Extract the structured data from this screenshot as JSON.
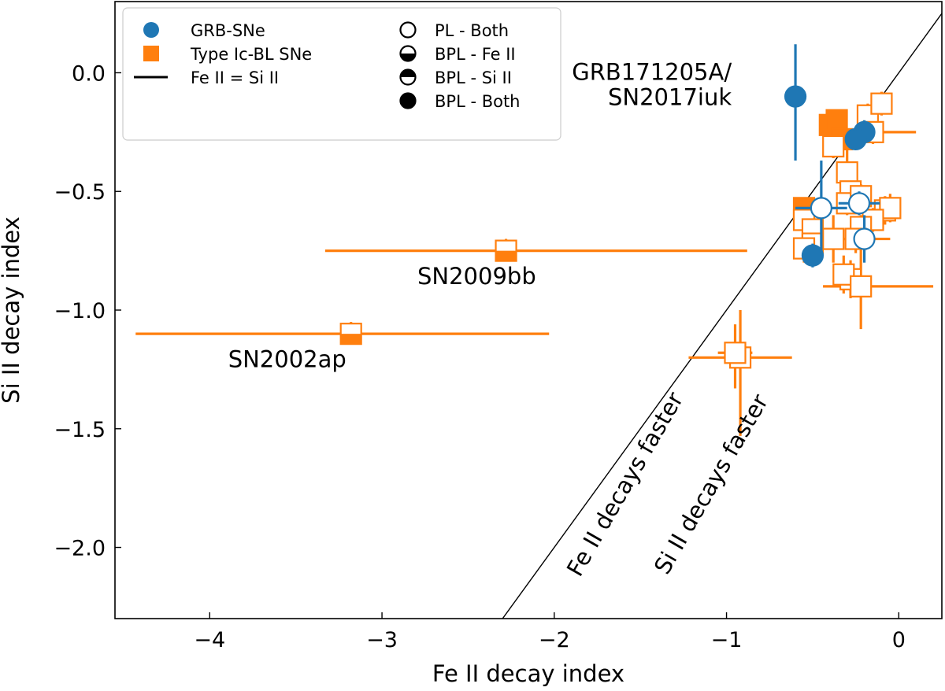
{
  "chart_data": {
    "type": "scatter",
    "xlabel": "Fe II decay index",
    "ylabel": "Si II decay index",
    "xlim": [
      -4.55,
      0.25
    ],
    "ylim": [
      -2.3,
      0.3
    ],
    "xticks": [
      -4,
      -3,
      -2,
      -1,
      0
    ],
    "yticks": [
      -2.0,
      -1.5,
      -1.0,
      -0.5,
      0.0
    ],
    "xtick_labels": [
      "−4",
      "−3",
      "−2",
      "−1",
      "0"
    ],
    "ytick_labels": [
      "−2.0",
      "−1.5",
      "−1.0",
      "−0.5",
      "0.0"
    ],
    "colors": {
      "grb": "#1f77b4",
      "ic": "#ff7f0e",
      "line": "#000000"
    },
    "equality_line": {
      "label": "Fe II = Si II",
      "slope": 1,
      "intercept": 0
    },
    "legend": {
      "position": "top-left",
      "col1": [
        {
          "label": "GRB-SNe",
          "marker": "circle-filled",
          "color": "grb"
        },
        {
          "label": "Type Ic-BL SNe",
          "marker": "square-filled",
          "color": "ic"
        },
        {
          "label": "Fe II = Si II",
          "marker": "line",
          "color": "line"
        }
      ],
      "col2": [
        {
          "label": "PL - Both",
          "fill": "none"
        },
        {
          "label": "BPL - Fe II",
          "fill": "bottom"
        },
        {
          "label": "BPL - Si II",
          "fill": "top"
        },
        {
          "label": "BPL - Both",
          "fill": "full"
        }
      ]
    },
    "annotations": [
      {
        "lines": [
          "GRB171205A/",
          "SN2017iuk"
        ],
        "x": -0.97,
        "y": -0.03,
        "anchor": "end"
      },
      {
        "lines": [
          "SN2009bb"
        ],
        "x": -2.45,
        "y": -0.89,
        "anchor": "middle"
      },
      {
        "lines": [
          "SN2002ap"
        ],
        "x": -3.55,
        "y": -1.24,
        "anchor": "middle"
      },
      {
        "lines": [
          "Fe II decays faster"
        ],
        "x": -1.55,
        "y": -1.75,
        "anchor": "middle",
        "rotate": true
      },
      {
        "lines": [
          "Si II decays faster"
        ],
        "x": -1.05,
        "y": -1.75,
        "anchor": "middle",
        "rotate": true
      }
    ],
    "series": [
      {
        "name": "Type Ic-BL SNe",
        "color": "ic",
        "marker": "square",
        "points": [
          {
            "x": -3.18,
            "y": -1.1,
            "xerr": [
              1.25,
              1.15
            ],
            "yerr": [
              0.02,
              0.05
            ],
            "fill": "bottom"
          },
          {
            "x": -2.28,
            "y": -0.75,
            "xerr": [
              1.05,
              1.4
            ],
            "yerr": [
              0.02,
              0.05
            ],
            "fill": "bottom"
          },
          {
            "x": -0.92,
            "y": -1.2,
            "xerr": [
              0.3,
              0.3
            ],
            "yerr": [
              0.33,
              0.2
            ],
            "fill": "none"
          },
          {
            "x": -0.95,
            "y": -1.18,
            "xerr": [
              0.1,
              0.1
            ],
            "yerr": [
              0.15,
              0.12
            ],
            "fill": "none"
          },
          {
            "x": -0.4,
            "y": -0.22,
            "xerr": [
              0.05,
              0.05
            ],
            "yerr": [
              0.04,
              0.04
            ],
            "fill": "full"
          },
          {
            "x": -0.36,
            "y": -0.2,
            "xerr": [
              0.05,
              0.05
            ],
            "yerr": [
              0.04,
              0.04
            ],
            "fill": "full"
          },
          {
            "x": -0.33,
            "y": -0.28,
            "xerr": [
              0.05,
              0.05
            ],
            "yerr": [
              0.04,
              0.04
            ],
            "fill": "full"
          },
          {
            "x": -0.55,
            "y": -0.57,
            "xerr": [
              0.05,
              0.05
            ],
            "yerr": [
              0.04,
              0.04
            ],
            "fill": "full"
          },
          {
            "x": -0.18,
            "y": -0.18,
            "xerr": [
              0.06,
              0.06
            ],
            "yerr": [
              0.05,
              0.05
            ],
            "fill": "none"
          },
          {
            "x": -0.1,
            "y": -0.13,
            "xerr": [
              0.05,
              0.05
            ],
            "yerr": [
              0.05,
              0.05
            ],
            "fill": "none"
          },
          {
            "x": -0.15,
            "y": -0.25,
            "xerr": [
              0.05,
              0.25
            ],
            "yerr": [
              0.05,
              0.05
            ],
            "fill": "none"
          },
          {
            "x": -0.38,
            "y": -0.31,
            "xerr": [
              0.05,
              0.05
            ],
            "yerr": [
              0.05,
              0.05
            ],
            "fill": "none"
          },
          {
            "x": -0.3,
            "y": -0.42,
            "xerr": [
              0.05,
              0.05
            ],
            "yerr": [
              0.12,
              0.12
            ],
            "fill": "none"
          },
          {
            "x": -0.28,
            "y": -0.5,
            "xerr": [
              0.06,
              0.06
            ],
            "yerr": [
              0.08,
              0.08
            ],
            "fill": "none"
          },
          {
            "x": -0.55,
            "y": -0.62,
            "xerr": [
              0.05,
              0.05
            ],
            "yerr": [
              0.08,
              0.08
            ],
            "fill": "none"
          },
          {
            "x": -0.5,
            "y": -0.66,
            "xerr": [
              0.1,
              0.1
            ],
            "yerr": [
              0.06,
              0.06
            ],
            "fill": "none"
          },
          {
            "x": -0.38,
            "y": -0.7,
            "xerr": [
              0.2,
              0.2
            ],
            "yerr": [
              0.1,
              0.1
            ],
            "fill": "none"
          },
          {
            "x": -0.5,
            "y": -0.72,
            "xerr": [
              0.06,
              0.06
            ],
            "yerr": [
              0.08,
              0.08
            ],
            "fill": "none"
          },
          {
            "x": -0.55,
            "y": -0.74,
            "xerr": [
              0.06,
              0.06
            ],
            "yerr": [
              0.06,
              0.06
            ],
            "fill": "none"
          },
          {
            "x": -0.3,
            "y": -0.55,
            "xerr": [
              0.05,
              0.05
            ],
            "yerr": [
              0.05,
              0.05
            ],
            "fill": "none"
          },
          {
            "x": -0.22,
            "y": -0.52,
            "xerr": [
              0.06,
              0.06
            ],
            "yerr": [
              0.05,
              0.05
            ],
            "fill": "none"
          },
          {
            "x": -0.08,
            "y": -0.58,
            "xerr": [
              0.06,
              0.06
            ],
            "yerr": [
              0.06,
              0.06
            ],
            "fill": "none"
          },
          {
            "x": -0.05,
            "y": -0.57,
            "xerr": [
              0.06,
              0.06
            ],
            "yerr": [
              0.06,
              0.06
            ],
            "fill": "none"
          },
          {
            "x": -0.15,
            "y": -0.62,
            "xerr": [
              0.05,
              0.05
            ],
            "yerr": [
              0.05,
              0.05
            ],
            "fill": "none"
          },
          {
            "x": -0.22,
            "y": -0.65,
            "xerr": [
              0.05,
              0.05
            ],
            "yerr": [
              0.05,
              0.05
            ],
            "fill": "none"
          },
          {
            "x": -0.25,
            "y": -0.7,
            "xerr": [
              0.15,
              0.2
            ],
            "yerr": [
              0.06,
              0.06
            ],
            "fill": "none"
          },
          {
            "x": -0.28,
            "y": -0.87,
            "xerr": [
              0.06,
              0.06
            ],
            "yerr": [
              0.08,
              0.08
            ],
            "fill": "none"
          },
          {
            "x": -0.32,
            "y": -0.85,
            "xerr": [
              0.06,
              0.06
            ],
            "yerr": [
              0.08,
              0.08
            ],
            "fill": "none"
          },
          {
            "x": -0.22,
            "y": -0.9,
            "xerr": [
              0.22,
              0.42
            ],
            "yerr": [
              0.18,
              0.27
            ],
            "fill": "none"
          }
        ]
      },
      {
        "name": "GRB-SNe",
        "color": "grb",
        "marker": "circle",
        "points": [
          {
            "x": -0.6,
            "y": -0.1,
            "xerr": [
              0.02,
              0.02
            ],
            "yerr": [
              0.27,
              0.22
            ],
            "fill": "full"
          },
          {
            "x": -0.2,
            "y": -0.25,
            "xerr": [
              0.04,
              0.04
            ],
            "yerr": [
              0.05,
              0.05
            ],
            "fill": "full"
          },
          {
            "x": -0.25,
            "y": -0.28,
            "xerr": [
              0.04,
              0.04
            ],
            "yerr": [
              0.04,
              0.04
            ],
            "fill": "full"
          },
          {
            "x": -0.45,
            "y": -0.57,
            "xerr": [
              0.15,
              0.15
            ],
            "yerr": [
              0.2,
              0.2
            ],
            "fill": "none"
          },
          {
            "x": -0.23,
            "y": -0.55,
            "xerr": [
              0.12,
              0.12
            ],
            "yerr": [
              0.05,
              0.05
            ],
            "fill": "none"
          },
          {
            "x": -0.2,
            "y": -0.7,
            "xerr": [
              0.05,
              0.05
            ],
            "yerr": [
              0.1,
              0.1
            ],
            "fill": "none"
          },
          {
            "x": -0.5,
            "y": -0.77,
            "xerr": [
              0.04,
              0.04
            ],
            "yerr": [
              0.05,
              0.05
            ],
            "fill": "full"
          }
        ]
      }
    ]
  }
}
